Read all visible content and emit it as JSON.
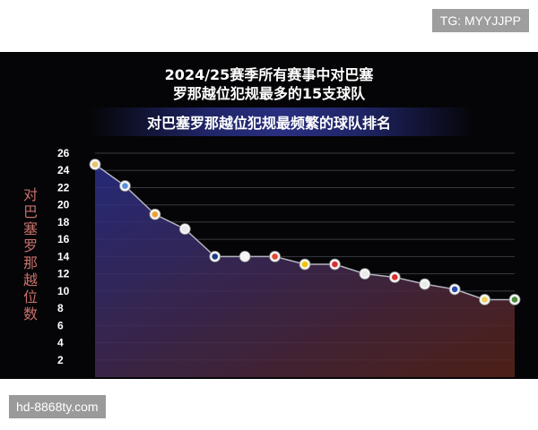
{
  "watermark_top": "TG: MYYJJPP",
  "watermark_bottom": "hd-8868ty.com",
  "chart_data": {
    "type": "line",
    "title_line1": "2024/25赛季所有赛事中对巴塞",
    "title_line2": "罗那越位犯规最多的15支球队",
    "subtitle": "对巴塞罗那越位犯规最频繁的球队排名",
    "ylabel": "对巴塞罗那越位数",
    "ylim": [
      0,
      26
    ],
    "yticks": [
      2,
      4,
      6,
      8,
      10,
      12,
      14,
      16,
      18,
      20,
      22,
      24,
      26
    ],
    "grid": true,
    "values": [
      24.7,
      22.2,
      18.9,
      17.2,
      14.0,
      14.0,
      14.0,
      13.1,
      13.1,
      12.0,
      11.6,
      10.8,
      10.2,
      9.0,
      9.0
    ],
    "colors": {
      "line": "#b4b4be",
      "fill_top": "#2a2f8a",
      "fill_bottom": "#5a2418",
      "grid": "#3a3a44",
      "tick": "#ffffff",
      "ylabel": "#c8706a"
    }
  }
}
